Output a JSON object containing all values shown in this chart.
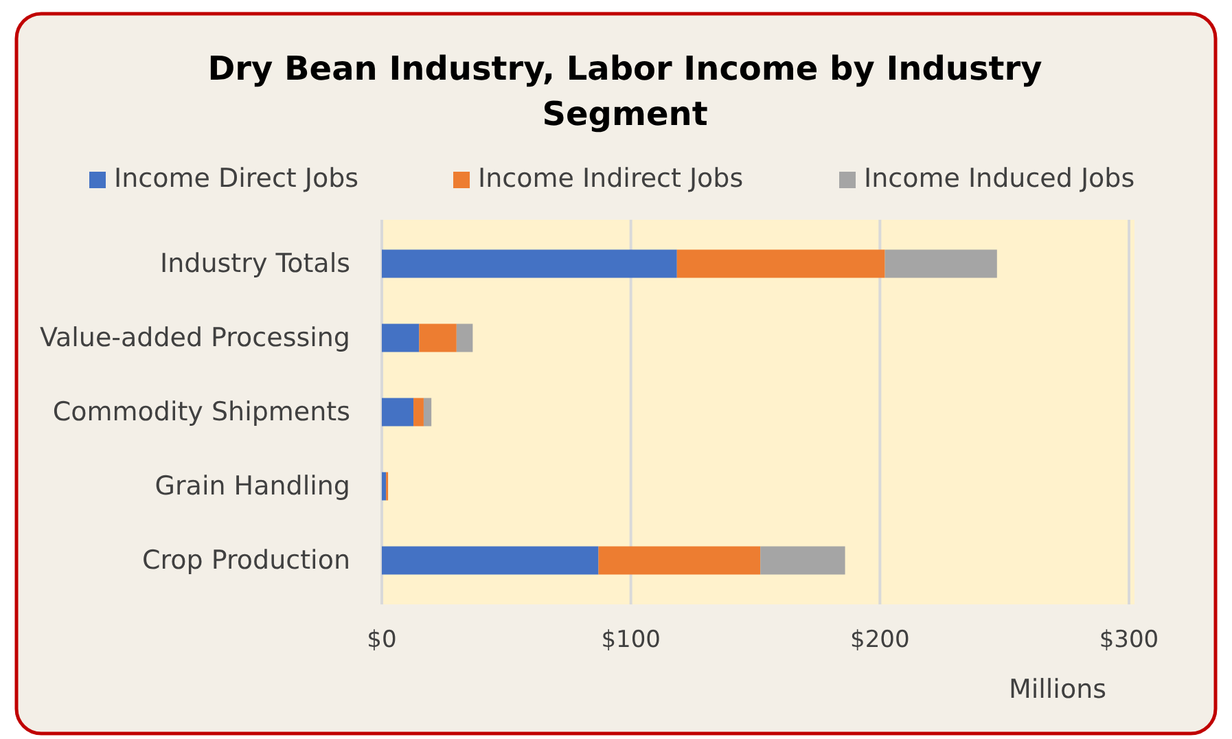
{
  "chart_data": {
    "type": "bar",
    "orientation": "horizontal",
    "stacked": true,
    "title": "Dry Bean Industry, Labor Income by Industry Segment",
    "xlabel": "Millions",
    "categories": [
      "Industry Totals",
      "Value-added Processing",
      "Commodity Shipments",
      "Grain Handling",
      "Crop Production"
    ],
    "series": [
      {
        "name": "Income Direct Jobs",
        "color": "#4472c4",
        "values": [
          118.5,
          15,
          12.7,
          1.7,
          87
        ]
      },
      {
        "name": "Income Indirect Jobs",
        "color": "#ed7d31",
        "values": [
          83.5,
          15,
          4.1,
          0.8,
          65
        ]
      },
      {
        "name": "Income Induced Jobs",
        "color": "#a5a5a5",
        "values": [
          45,
          6.5,
          3.1,
          null,
          34
        ]
      }
    ],
    "xlim": [
      0,
      300
    ],
    "xticks": [
      {
        "value": 0,
        "label": "$0"
      },
      {
        "value": 100,
        "label": "$100"
      },
      {
        "value": 200,
        "label": "$200"
      },
      {
        "value": 300,
        "label": "$300"
      }
    ],
    "grid": "x",
    "legend": "top"
  }
}
